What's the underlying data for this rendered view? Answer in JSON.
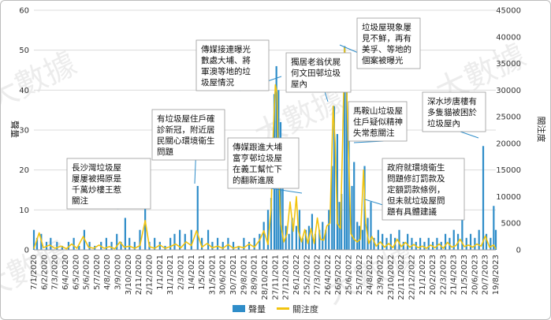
{
  "chart_data": {
    "type": "bar+line",
    "watermark": "大數據",
    "y_left": {
      "label": "聲量",
      "ylim": [
        0,
        60
      ],
      "ticks": [
        0,
        10,
        20,
        30,
        40,
        50,
        60
      ]
    },
    "y_right": {
      "label": "關注度",
      "ylim": [
        0,
        45000
      ],
      "ticks": [
        0,
        5000,
        10000,
        15000,
        20000,
        25000,
        30000,
        35000,
        40000,
        45000
      ]
    },
    "x_tick_labels": [
      "7/1/2020",
      "6/2/2020",
      "7/3/2020",
      "6/4/2020",
      "6/5/2020",
      "5/6/2020",
      "5/7/2020",
      "4/8/2020",
      "3/9/2020",
      "3/10/2020",
      "2/11/2020",
      "2/12/2020",
      "1/1/2021",
      "31/1/2021",
      "2/3/2021",
      "1/4/2021",
      "1/5/2021",
      "31/5/2021",
      "30/6/2021",
      "30/7/2021",
      "29/8/2021",
      "28/9/2021",
      "28/10/2021",
      "27/11/2021",
      "27/12/2021",
      "26/1/2022",
      "25/2/2022",
      "27/3/2022",
      "26/4/2022",
      "26/5/2022",
      "25/6/2022",
      "25/7/2022",
      "24/8/2022",
      "23/9/2022",
      "23/10/2022",
      "22/11/2022",
      "22/12/2022",
      "21/1/2023",
      "20/2/2023",
      "22/3/2023",
      "21/4/2023",
      "21/5/2023",
      "20/6/2023",
      "20/7/2023",
      "19/8/2023"
    ],
    "series": [
      {
        "name": "聲量",
        "type": "bar",
        "color": "#2f8dc9",
        "points": [
          [
            0,
            5
          ],
          [
            0.3,
            3
          ],
          [
            0.7,
            4
          ],
          [
            1.2,
            2
          ],
          [
            1.6,
            3
          ],
          [
            2.2,
            2
          ],
          [
            2.7,
            1
          ],
          [
            3.3,
            2
          ],
          [
            3.8,
            3
          ],
          [
            4.3,
            1
          ],
          [
            4.8,
            5
          ],
          [
            5.3,
            2
          ],
          [
            5.8,
            1
          ],
          [
            6.4,
            2
          ],
          [
            6.9,
            3
          ],
          [
            7.4,
            2
          ],
          [
            7.9,
            4
          ],
          [
            8.3,
            2
          ],
          [
            8.7,
            8
          ],
          [
            9.1,
            3
          ],
          [
            9.6,
            2
          ],
          [
            10.1,
            5
          ],
          [
            10.6,
            11
          ],
          [
            11.0,
            2
          ],
          [
            11.5,
            3
          ],
          [
            12.0,
            2
          ],
          [
            12.5,
            1
          ],
          [
            13.0,
            3
          ],
          [
            13.4,
            4
          ],
          [
            13.9,
            5
          ],
          [
            14.4,
            4
          ],
          [
            15.0,
            5
          ],
          [
            15.6,
            16
          ],
          [
            16.0,
            3
          ],
          [
            16.6,
            5
          ],
          [
            17.0,
            2
          ],
          [
            17.5,
            3
          ],
          [
            18.0,
            2
          ],
          [
            18.5,
            3
          ],
          [
            19.0,
            2
          ],
          [
            19.5,
            1
          ],
          [
            20.0,
            3
          ],
          [
            20.5,
            2
          ],
          [
            21.0,
            3
          ],
          [
            21.5,
            4
          ],
          [
            21.9,
            7
          ],
          [
            22.3,
            10
          ],
          [
            22.6,
            13
          ],
          [
            22.9,
            39
          ],
          [
            23.1,
            46
          ],
          [
            23.3,
            40
          ],
          [
            23.5,
            32
          ],
          [
            23.7,
            18
          ],
          [
            24.0,
            6
          ],
          [
            24.3,
            4
          ],
          [
            24.6,
            8
          ],
          [
            25.0,
            6
          ],
          [
            25.3,
            10
          ],
          [
            25.6,
            3
          ],
          [
            25.9,
            5
          ],
          [
            26.2,
            6
          ],
          [
            26.5,
            9
          ],
          [
            26.8,
            4
          ],
          [
            27.2,
            5
          ],
          [
            27.5,
            7
          ],
          [
            27.8,
            5
          ],
          [
            28.1,
            10
          ],
          [
            28.4,
            21
          ],
          [
            28.6,
            36
          ],
          [
            28.9,
            29
          ],
          [
            29.1,
            12
          ],
          [
            29.3,
            14
          ],
          [
            29.6,
            51
          ],
          [
            29.8,
            40
          ],
          [
            30.0,
            30
          ],
          [
            30.3,
            16
          ],
          [
            30.5,
            22
          ],
          [
            30.8,
            7
          ],
          [
            31.0,
            6
          ],
          [
            31.3,
            5
          ],
          [
            31.5,
            21
          ],
          [
            31.8,
            8
          ],
          [
            32.1,
            12
          ],
          [
            32.4,
            3
          ],
          [
            32.8,
            5
          ],
          [
            33.2,
            4
          ],
          [
            33.6,
            3
          ],
          [
            34.0,
            4
          ],
          [
            34.4,
            3
          ],
          [
            34.8,
            5
          ],
          [
            35.2,
            2
          ],
          [
            35.6,
            4
          ],
          [
            36.0,
            3
          ],
          [
            36.4,
            2
          ],
          [
            36.8,
            3
          ],
          [
            37.2,
            2
          ],
          [
            37.6,
            3
          ],
          [
            38.0,
            2
          ],
          [
            38.4,
            3
          ],
          [
            38.8,
            2
          ],
          [
            39.2,
            4
          ],
          [
            39.6,
            3
          ],
          [
            40.0,
            5
          ],
          [
            40.4,
            4
          ],
          [
            40.8,
            9
          ],
          [
            41.2,
            3
          ],
          [
            41.6,
            4
          ],
          [
            42.0,
            3
          ],
          [
            42.4,
            5
          ],
          [
            42.8,
            26
          ],
          [
            43.1,
            4
          ],
          [
            43.5,
            3
          ],
          [
            43.8,
            11
          ],
          [
            44.0,
            5
          ]
        ]
      },
      {
        "name": "關注度",
        "type": "line",
        "color": "#f2c40f",
        "points": [
          [
            0,
            200
          ],
          [
            0.5,
            3200
          ],
          [
            0.9,
            400
          ],
          [
            1.5,
            900
          ],
          [
            2.0,
            300
          ],
          [
            2.6,
            700
          ],
          [
            3.1,
            200
          ],
          [
            3.6,
            1100
          ],
          [
            4.1,
            300
          ],
          [
            4.7,
            2500
          ],
          [
            5.2,
            500
          ],
          [
            5.7,
            300
          ],
          [
            6.2,
            900
          ],
          [
            6.7,
            300
          ],
          [
            7.2,
            600
          ],
          [
            7.7,
            200
          ],
          [
            8.2,
            1500
          ],
          [
            8.6,
            500
          ],
          [
            9.1,
            700
          ],
          [
            9.6,
            300
          ],
          [
            10.1,
            800
          ],
          [
            10.6,
            5500
          ],
          [
            11.0,
            600
          ],
          [
            11.5,
            300
          ],
          [
            12.0,
            900
          ],
          [
            12.5,
            300
          ],
          [
            13.0,
            600
          ],
          [
            13.5,
            1100
          ],
          [
            14.0,
            400
          ],
          [
            14.5,
            1500
          ],
          [
            15.0,
            800
          ],
          [
            15.5,
            3600
          ],
          [
            16.0,
            500
          ],
          [
            16.5,
            1200
          ],
          [
            17.0,
            400
          ],
          [
            17.5,
            700
          ],
          [
            18.0,
            300
          ],
          [
            18.5,
            1000
          ],
          [
            19.0,
            300
          ],
          [
            19.5,
            600
          ],
          [
            20.0,
            400
          ],
          [
            20.5,
            1100
          ],
          [
            21.0,
            500
          ],
          [
            21.5,
            1800
          ],
          [
            21.9,
            3600
          ],
          [
            22.3,
            1000
          ],
          [
            22.6,
            8000
          ],
          [
            22.8,
            22000
          ],
          [
            23.0,
            31000
          ],
          [
            23.15,
            29500
          ],
          [
            23.3,
            16000
          ],
          [
            23.5,
            5000
          ],
          [
            23.8,
            1500
          ],
          [
            24.1,
            3000
          ],
          [
            24.4,
            9000
          ],
          [
            24.7,
            3500
          ],
          [
            25.0,
            10000
          ],
          [
            25.2,
            3500
          ],
          [
            25.5,
            1500
          ],
          [
            25.8,
            3800
          ],
          [
            26.1,
            1200
          ],
          [
            26.4,
            4000
          ],
          [
            26.7,
            1200
          ],
          [
            27.0,
            6000
          ],
          [
            27.3,
            2000
          ],
          [
            27.6,
            1800
          ],
          [
            27.9,
            4500
          ],
          [
            28.2,
            5000
          ],
          [
            28.5,
            27000
          ],
          [
            28.7,
            20000
          ],
          [
            28.9,
            5000
          ],
          [
            29.2,
            4000
          ],
          [
            29.4,
            20000
          ],
          [
            29.6,
            38000
          ],
          [
            29.8,
            30000
          ],
          [
            30.0,
            16000
          ],
          [
            30.2,
            3000
          ],
          [
            30.5,
            2000
          ],
          [
            30.8,
            1500
          ],
          [
            31.1,
            2000
          ],
          [
            31.4,
            15000
          ],
          [
            31.6,
            5000
          ],
          [
            31.9,
            1200
          ],
          [
            32.2,
            2500
          ],
          [
            32.6,
            700
          ],
          [
            33.0,
            1500
          ],
          [
            33.4,
            500
          ],
          [
            33.8,
            1200
          ],
          [
            34.2,
            400
          ],
          [
            34.6,
            2000
          ],
          [
            35.0,
            600
          ],
          [
            35.4,
            1400
          ],
          [
            35.8,
            500
          ],
          [
            36.2,
            1000
          ],
          [
            36.6,
            400
          ],
          [
            37.0,
            700
          ],
          [
            37.4,
            300
          ],
          [
            37.8,
            900
          ],
          [
            38.2,
            400
          ],
          [
            38.6,
            1100
          ],
          [
            39.0,
            300
          ],
          [
            39.4,
            1400
          ],
          [
            39.8,
            500
          ],
          [
            40.2,
            800
          ],
          [
            40.6,
            2000
          ],
          [
            41.0,
            600
          ],
          [
            41.4,
            900
          ],
          [
            41.8,
            500
          ],
          [
            42.2,
            1100
          ],
          [
            42.6,
            700
          ],
          [
            43.0,
            2600
          ],
          [
            43.4,
            500
          ],
          [
            43.8,
            900
          ],
          [
            44.0,
            200
          ]
        ]
      }
    ],
    "legend": [
      "聲量",
      "關注度"
    ],
    "legend_position": "bottom-center",
    "grid": true,
    "annotations": [
      "長沙灣垃圾屋屢屢被揭原是千萬炒樓王惹關注",
      "有垃圾屋住戶確診新冠，附近居民關心環境衛生問題",
      "傳媒接連曝光數處大埔、將軍澳等地的垃圾屋情況",
      "傳媒跟進大埔富亨邨垃圾屋在義工幫忙下的翻新進展",
      "獨居老翁伏屍何文田邨垃圾屋內",
      "垃圾屋現象屢見不鮮，再有美孚、等地的個案被曝光",
      "馬鞍山垃圾屋住戶疑似精神失常惹關注",
      "政府就環境衛生問題修訂罰款及定額罰款條例，但未就垃圾屋問題有具體建議",
      "深水埗唐樓有多隻貓被困於垃圾屋內"
    ]
  }
}
